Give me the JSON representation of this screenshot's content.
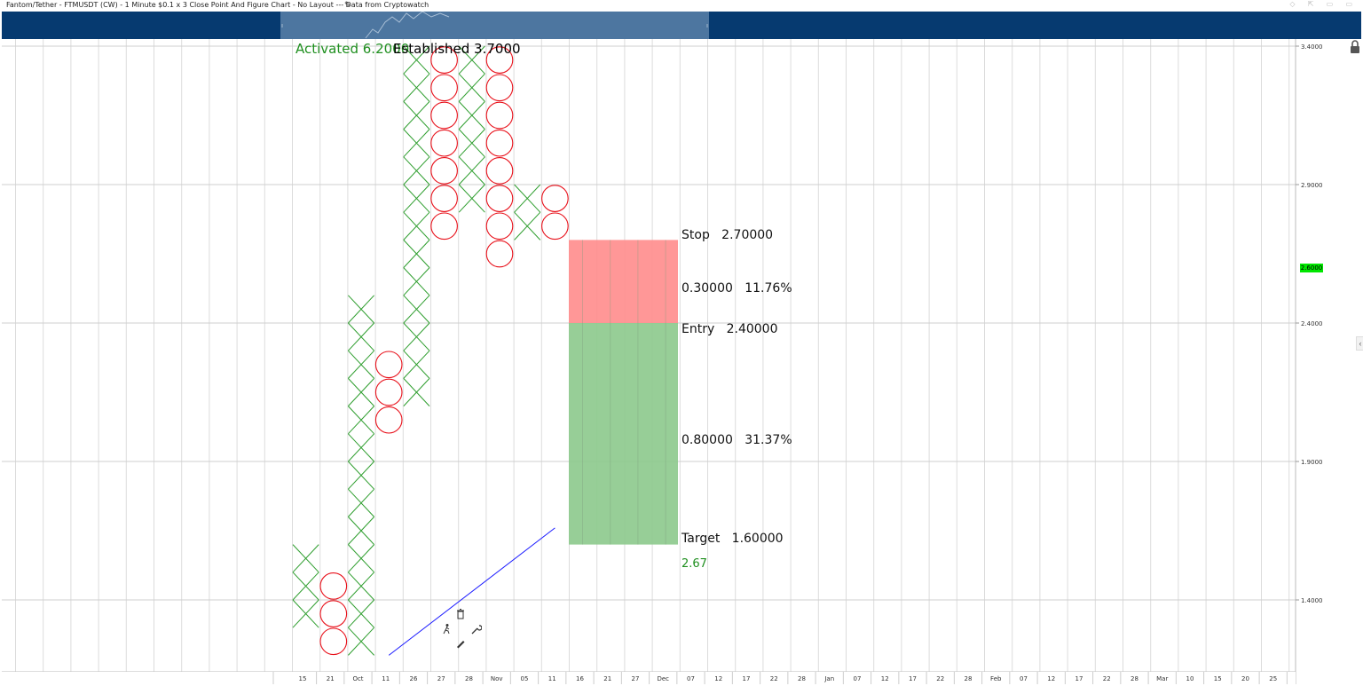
{
  "window": {
    "title": "Fantom/Tether - FTMUSDT (CW) - 1 Minute $0.1 x 3 Close Point And Figure Chart - No Layout --- Data from Cryptowatch",
    "edit_icon": "pencil-icon",
    "controls": "◇ ⇱ ▭ ▭"
  },
  "chart_data": {
    "type": "point-and-figure",
    "box_size": 0.1,
    "reversal": 3,
    "y_axis": {
      "range": [
        1.2,
        3.45
      ],
      "ticks": [
        "3.4000",
        "2.9000",
        "2.4000",
        "1.9000",
        "1.4000"
      ],
      "tick_values": [
        3.4,
        2.9,
        2.4,
        1.9,
        1.4
      ]
    },
    "x_axis": {
      "tick_labels": [
        "15",
        "21",
        "Oct",
        "11",
        "26",
        "27",
        "28",
        "Nov",
        "05",
        "11",
        "16",
        "21",
        "27",
        "Dec",
        "07",
        "12",
        "17",
        "22",
        "28",
        "Jan",
        "07",
        "12",
        "17",
        "22",
        "28",
        "Feb",
        "07",
        "12",
        "17",
        "22",
        "28",
        "Mar",
        "10",
        "15",
        "20",
        "25"
      ]
    },
    "columns": [
      {
        "type": "X",
        "low": 1.3,
        "high": 1.6
      },
      {
        "type": "O",
        "low": 1.2,
        "high": 1.5
      },
      {
        "type": "X",
        "low": 1.2,
        "high": 2.5
      },
      {
        "type": "O",
        "low": 2.0,
        "high": 2.3
      },
      {
        "type": "X",
        "low": 2.1,
        "high": 3.4
      },
      {
        "type": "O",
        "low": 2.7,
        "high": 3.4
      },
      {
        "type": "X",
        "low": 2.8,
        "high": 3.4
      },
      {
        "type": "O",
        "low": 2.6,
        "high": 3.4
      },
      {
        "type": "X",
        "low": 2.7,
        "high": 2.9
      },
      {
        "type": "O",
        "low": 2.7,
        "high": 2.9
      }
    ],
    "current_price": "2.6000",
    "annotations": {
      "activated": "Activated 6.2000",
      "established": "Established 3.7000"
    },
    "trendline": {
      "from": {
        "column": 3.5,
        "price": 1.2
      },
      "to": {
        "column": 9.5,
        "price": 1.66
      }
    },
    "risk_reward": {
      "stop_label": "Stop   2.70000",
      "risk_label": "0.30000   11.76%",
      "entry_label": "Entry   2.40000",
      "reward_label": "0.80000   31.37%",
      "target_label": "Target   1.60000",
      "ratio_label": "2.67",
      "stop": 2.7,
      "entry": 2.4,
      "target": 1.6,
      "risk_color": "#ff8c8c",
      "reward_color": "#8cc98c"
    },
    "colors": {
      "x": "#2e9e2e",
      "o": "#e8101a",
      "trendline": "#1a1aff",
      "ratio": "#1f8f1f",
      "activated": "#1f8f1f"
    }
  },
  "toolbox": {
    "delete_icon": "trash-icon",
    "move_icon": "walking-figure-icon",
    "settings_icon": "wrench-icon",
    "draw_icon": "pencil-icon"
  },
  "sidebar": {
    "lock_icon": "lock-icon",
    "collapse_icon": "chevron-left-icon"
  }
}
